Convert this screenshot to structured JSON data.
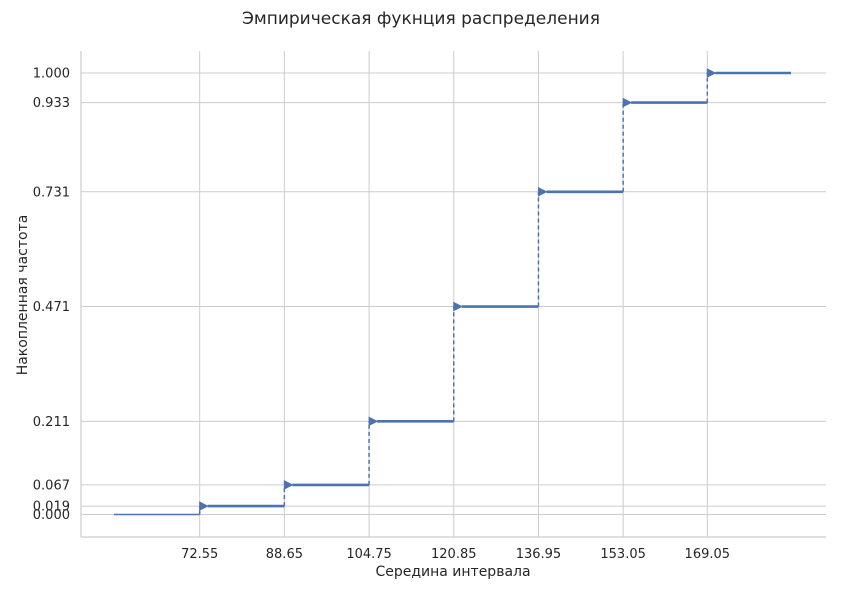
{
  "chart_data": {
    "type": "line",
    "subtype": "step (empirical CDF)",
    "title": "Эмпирическая фукнция распределения",
    "xlabel": "Середина интервала",
    "ylabel": "Накопленная частота",
    "x_ticks": [
      "72.55",
      "88.65",
      "104.75",
      "120.85",
      "136.95",
      "153.05",
      "169.05"
    ],
    "y_ticks": [
      "0.000",
      "0.019",
      "0.067",
      "0.211",
      "0.471",
      "0.731",
      "0.933",
      "1.000"
    ],
    "xlim": [
      56.45,
      185.15
    ],
    "ylim": [
      -0.06,
      1.06
    ],
    "grid": true,
    "color": "#4c72b0",
    "steps": [
      {
        "x_start": 56.45,
        "x_end": 72.55,
        "y": 0.0,
        "arrow": false
      },
      {
        "x_start": 72.55,
        "x_end": 88.65,
        "y": 0.019,
        "arrow": true
      },
      {
        "x_start": 88.65,
        "x_end": 104.75,
        "y": 0.067,
        "arrow": true
      },
      {
        "x_start": 104.75,
        "x_end": 120.85,
        "y": 0.211,
        "arrow": true
      },
      {
        "x_start": 120.85,
        "x_end": 136.95,
        "y": 0.471,
        "arrow": true
      },
      {
        "x_start": 136.95,
        "x_end": 153.05,
        "y": 0.731,
        "arrow": true
      },
      {
        "x_start": 153.05,
        "x_end": 169.05,
        "y": 0.933,
        "arrow": true
      },
      {
        "x_start": 169.05,
        "x_end": 185.15,
        "y": 1.0,
        "arrow": true
      }
    ],
    "jumps": [
      {
        "x": 72.55,
        "y_from": 0.0,
        "y_to": 0.019
      },
      {
        "x": 88.65,
        "y_from": 0.019,
        "y_to": 0.067
      },
      {
        "x": 104.75,
        "y_from": 0.067,
        "y_to": 0.211
      },
      {
        "x": 120.85,
        "y_from": 0.211,
        "y_to": 0.471
      },
      {
        "x": 136.95,
        "y_from": 0.471,
        "y_to": 0.731
      },
      {
        "x": 153.05,
        "y_from": 0.731,
        "y_to": 0.933
      },
      {
        "x": 169.05,
        "y_from": 0.933,
        "y_to": 1.0
      }
    ]
  }
}
